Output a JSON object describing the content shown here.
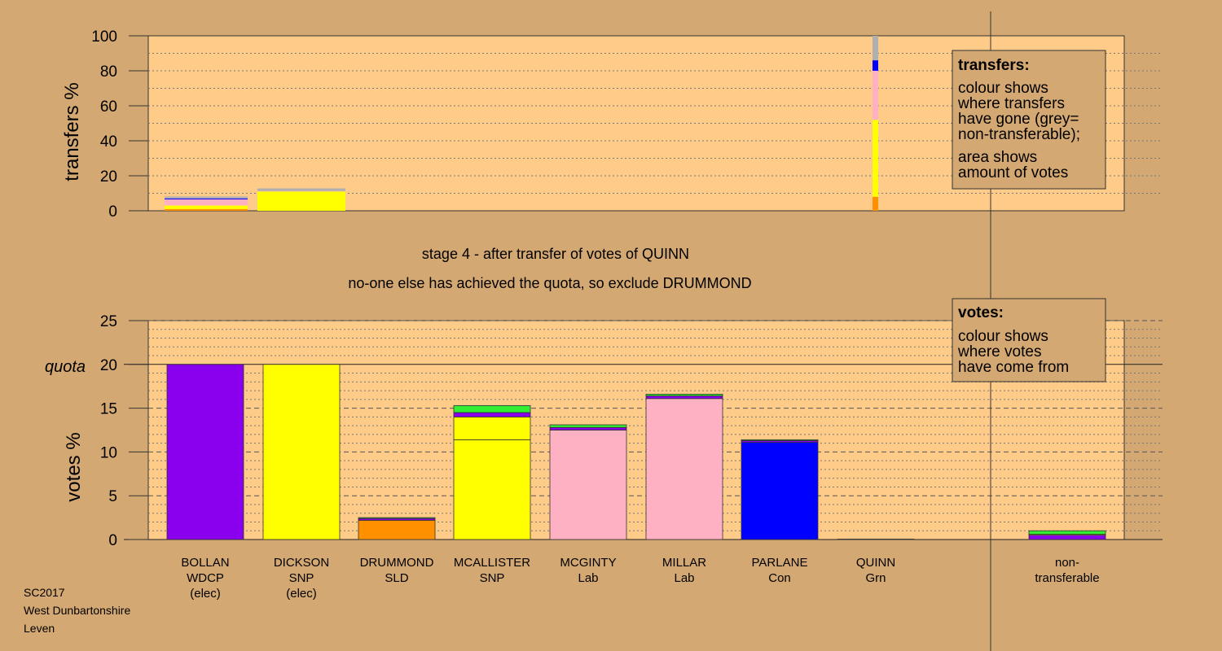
{
  "stage": {
    "line1": "stage 4 - after transfer of votes of QUINN",
    "line2": "no-one else has achieved the quota, so exclude DRUMMOND"
  },
  "footer": [
    "SC2017",
    "West Dunbartonshire",
    "Leven"
  ],
  "legend_transfers": {
    "title": "transfers:",
    "lines": [
      "colour shows",
      "where transfers",
      "have gone (grey=",
      "non-transferable);",
      "area shows",
      "amount of votes"
    ]
  },
  "legend_votes": {
    "title": "votes:",
    "lines": [
      "colour shows",
      "where votes",
      "have come from"
    ]
  },
  "colors": {
    "WDCP": "#8a00ee",
    "SNP": "#ffff00",
    "SLD": "#ff9100",
    "Lab": "#ffb1c4",
    "Con": "#0000ff",
    "Grn": "#33ee33",
    "nontransferable": "#b0b0b0",
    "panel": "#ffcb88",
    "background": "#d4a872"
  },
  "chart_data": [
    {
      "type": "bar",
      "stacked": true,
      "ylabel": "transfers %",
      "ylim": [
        0,
        100
      ],
      "yticks": [
        0,
        20,
        40,
        60,
        80,
        100
      ],
      "grid": true,
      "note": "source-candidate widths show share of votes transferred",
      "sources": [
        {
          "candidate": "BOLLAN",
          "width_votes": 20,
          "segments": [
            {
              "to": "DRUMMOND",
              "party": "SLD",
              "value": 1.0
            },
            {
              "to": "MCALLISTER",
              "party": "SNP",
              "value": 2.0
            },
            {
              "to": "MCGINTY",
              "party": "Lab",
              "value": 2.0
            },
            {
              "to": "MILLAR",
              "party": "Lab",
              "value": 1.5
            },
            {
              "to": "PARLANE",
              "party": "Con",
              "value": 0.5
            },
            {
              "to": "non-transferable",
              "party": "nontransferable",
              "value": 1.2
            }
          ]
        },
        {
          "candidate": "DICKSON",
          "width_votes": 20,
          "segments": [
            {
              "to": "MCALLISTER",
              "party": "SNP",
              "value": 11.0
            },
            {
              "to": "MCGINTY",
              "party": "Lab",
              "value": 0.3
            },
            {
              "to": "non-transferable",
              "party": "nontransferable",
              "value": 1.5
            }
          ]
        },
        {
          "candidate": "QUINN",
          "width_votes": 1.5,
          "segments": [
            {
              "to": "DRUMMOND",
              "party": "SLD",
              "value": 8
            },
            {
              "to": "MCALLISTER",
              "party": "SNP",
              "value": 44
            },
            {
              "to": "MCGINTY",
              "party": "Lab",
              "value": 10
            },
            {
              "to": "MILLAR",
              "party": "Lab",
              "value": 18
            },
            {
              "to": "PARLANE",
              "party": "Con",
              "value": 6
            },
            {
              "to": "non-transferable",
              "party": "nontransferable",
              "value": 14
            }
          ]
        }
      ]
    },
    {
      "type": "bar",
      "stacked": true,
      "ylabel": "votes %",
      "ylim": [
        0,
        25
      ],
      "yticks": [
        0,
        5,
        10,
        15,
        20,
        25
      ],
      "quota": 20,
      "quota_label": "quota",
      "grid": true,
      "candidates": [
        {
          "name": "BOLLAN",
          "party": "WDCP",
          "status": "(elec)",
          "segments": [
            {
              "from": "WDCP",
              "value": 20.0
            }
          ]
        },
        {
          "name": "DICKSON",
          "party": "SNP",
          "status": "(elec)",
          "segments": [
            {
              "from": "SNP",
              "value": 20.0
            }
          ]
        },
        {
          "name": "DRUMMOND",
          "party": "SLD",
          "status": "",
          "segments": [
            {
              "from": "SLD",
              "value": 2.2
            },
            {
              "from": "WDCP",
              "value": 0.2
            },
            {
              "from": "Grn",
              "value": 0.1
            }
          ]
        },
        {
          "name": "MCALLISTER",
          "party": "SNP",
          "status": "",
          "segments": [
            {
              "from": "SNP",
              "value": 11.4
            },
            {
              "from": "SNP",
              "value": 2.6
            },
            {
              "from": "WDCP",
              "value": 0.5
            },
            {
              "from": "Grn",
              "value": 0.8
            }
          ]
        },
        {
          "name": "MCGINTY",
          "party": "Lab",
          "status": "",
          "segments": [
            {
              "from": "Lab",
              "value": 12.5
            },
            {
              "from": "WDCP",
              "value": 0.3
            },
            {
              "from": "Grn",
              "value": 0.3
            }
          ]
        },
        {
          "name": "MILLAR",
          "party": "Lab",
          "status": "",
          "segments": [
            {
              "from": "Lab",
              "value": 16.1
            },
            {
              "from": "WDCP",
              "value": 0.3
            },
            {
              "from": "Grn",
              "value": 0.2
            }
          ]
        },
        {
          "name": "PARLANE",
          "party": "Con",
          "status": "",
          "segments": [
            {
              "from": "Con",
              "value": 11.1
            },
            {
              "from": "WDCP",
              "value": 0.2
            },
            {
              "from": "Grn",
              "value": 0.1
            }
          ]
        },
        {
          "name": "QUINN",
          "party": "Grn",
          "status": "",
          "segments": [
            {
              "from": "Grn",
              "value": 0.05
            }
          ]
        },
        {
          "name": "non-",
          "party": "transferable",
          "status": "",
          "nontransferable": true,
          "segments": [
            {
              "from": "WDCP",
              "value": 0.5
            },
            {
              "from": "SNP",
              "value": 0.1
            },
            {
              "from": "Grn",
              "value": 0.4
            }
          ]
        }
      ]
    }
  ]
}
